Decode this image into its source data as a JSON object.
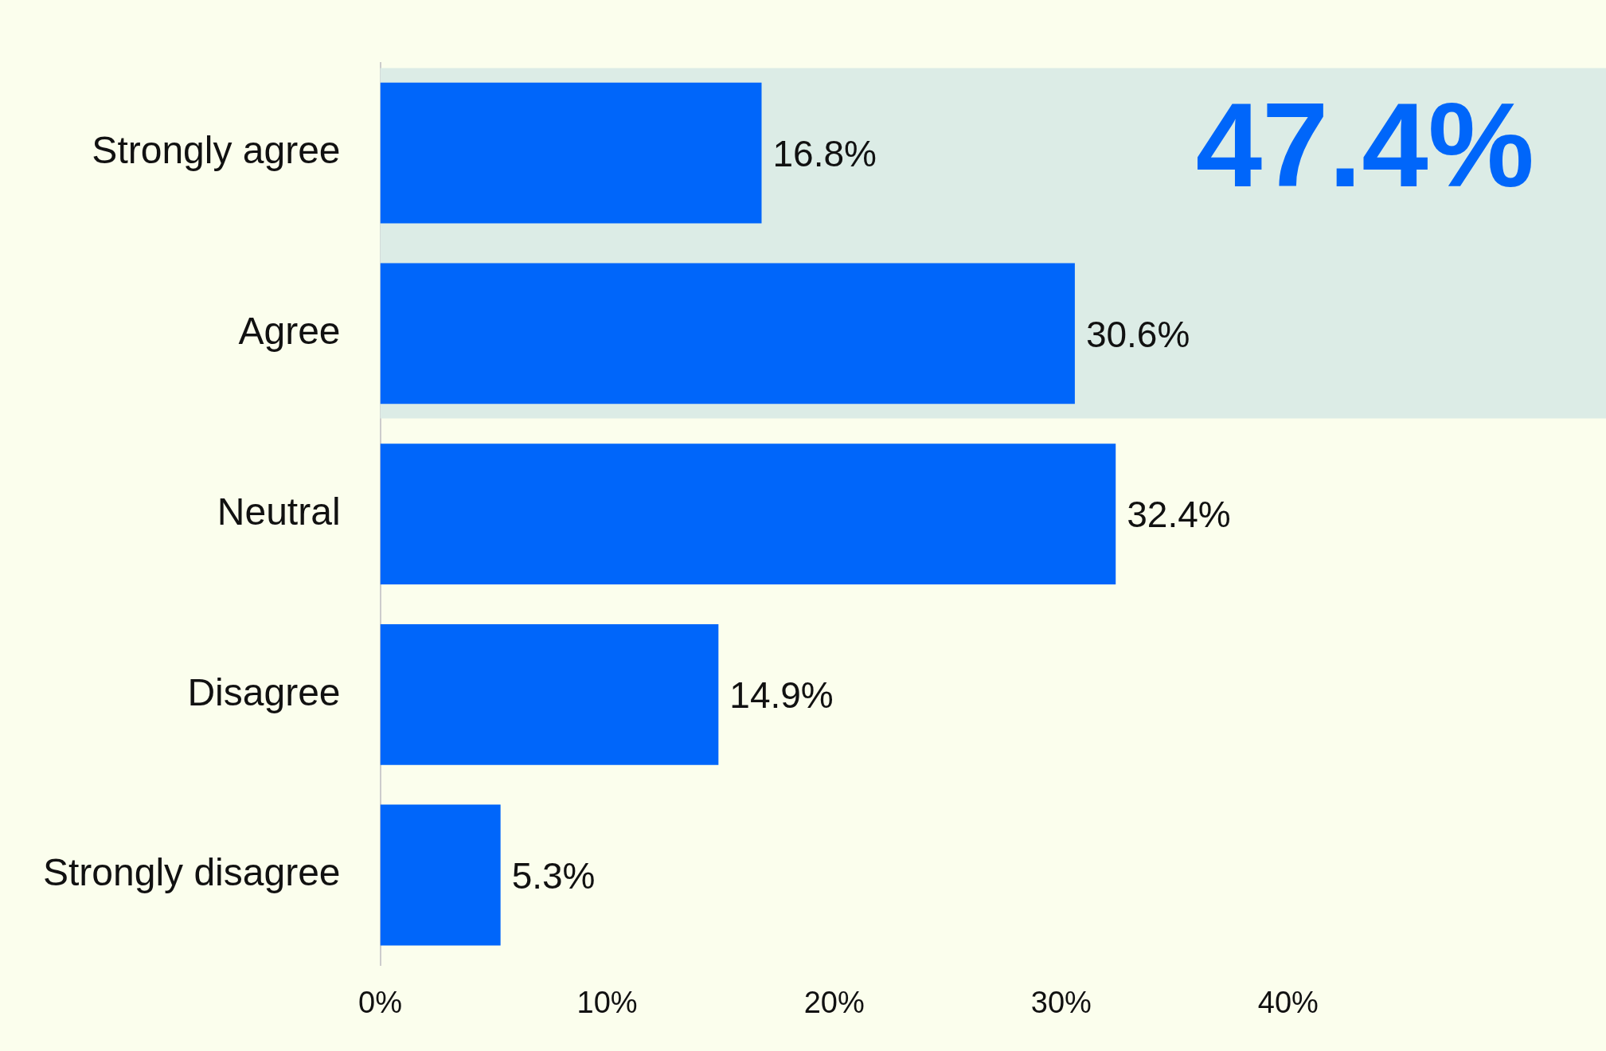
{
  "chart_data": {
    "type": "bar",
    "orientation": "horizontal",
    "categories": [
      "Strongly agree",
      "Agree",
      "Neutral",
      "Disagree",
      "Strongly disagree"
    ],
    "values": [
      16.8,
      30.6,
      32.4,
      14.9,
      5.3
    ],
    "value_labels": [
      "16.8%",
      "30.6%",
      "32.4%",
      "14.9%",
      "5.3%"
    ],
    "color": "#0066fa",
    "xlim": [
      0,
      54
    ],
    "xticks": [
      {
        "value": 0,
        "label": "0%"
      },
      {
        "value": 10,
        "label": "10%"
      },
      {
        "value": 20,
        "label": "20%"
      },
      {
        "value": 30,
        "label": "30%"
      },
      {
        "value": 40,
        "label": "40%"
      }
    ],
    "bands": [
      {
        "axis": "y",
        "from": "Strongly agree",
        "to": "Agree",
        "label": "47.4%",
        "color": "#dcece6"
      }
    ],
    "grid": false,
    "legend": false
  }
}
